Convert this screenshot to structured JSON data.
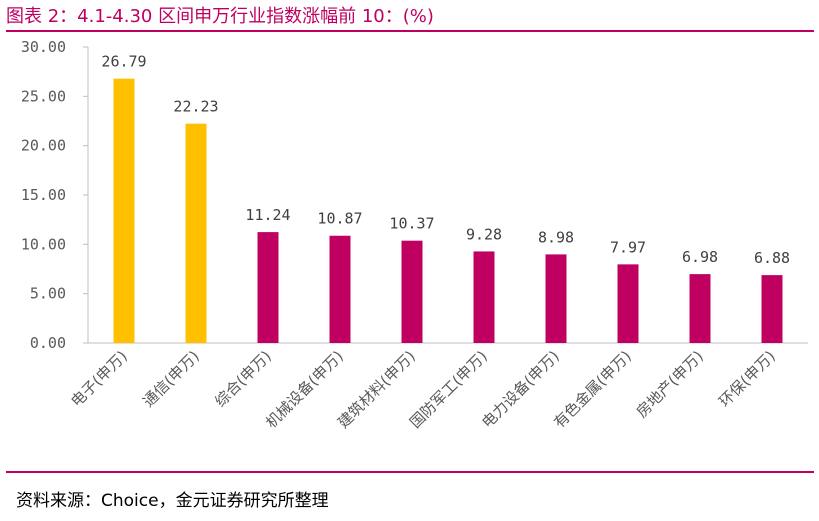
{
  "header": {
    "title": "图表 2：4.1-4.30 区间申万行业指数涨幅前 10：(%)"
  },
  "footer": {
    "source": "资料来源：Choice，金元证券研究所整理"
  },
  "colors": {
    "accent": "#c00060",
    "highlight": "#ffc000",
    "bar": "#c00060",
    "axis": "#bfbfbf",
    "text": "#595959"
  },
  "chart_data": {
    "type": "bar",
    "categories": [
      "电子(申万)",
      "通信(申万)",
      "综合(申万)",
      "机械设备(申万)",
      "建筑材料(申万)",
      "国防军工(申万)",
      "电力设备(申万)",
      "有色金属(申万)",
      "房地产(申万)",
      "环保(申万)"
    ],
    "values": [
      26.79,
      22.23,
      11.24,
      10.87,
      10.37,
      9.28,
      8.98,
      7.97,
      6.98,
      6.88
    ],
    "value_labels": [
      "26.79",
      "22.23",
      "11.24",
      "10.87",
      "10.37",
      "9.28",
      "8.98",
      "7.97",
      "6.98",
      "6.88"
    ],
    "bar_colors": [
      "#ffc000",
      "#ffc000",
      "#c00060",
      "#c00060",
      "#c00060",
      "#c00060",
      "#c00060",
      "#c00060",
      "#c00060",
      "#c00060"
    ],
    "ylim": [
      0,
      30
    ],
    "yticks": [
      "0.00",
      "5.00",
      "10.00",
      "15.00",
      "20.00",
      "25.00",
      "30.00"
    ],
    "grid": false,
    "legend": "none"
  }
}
